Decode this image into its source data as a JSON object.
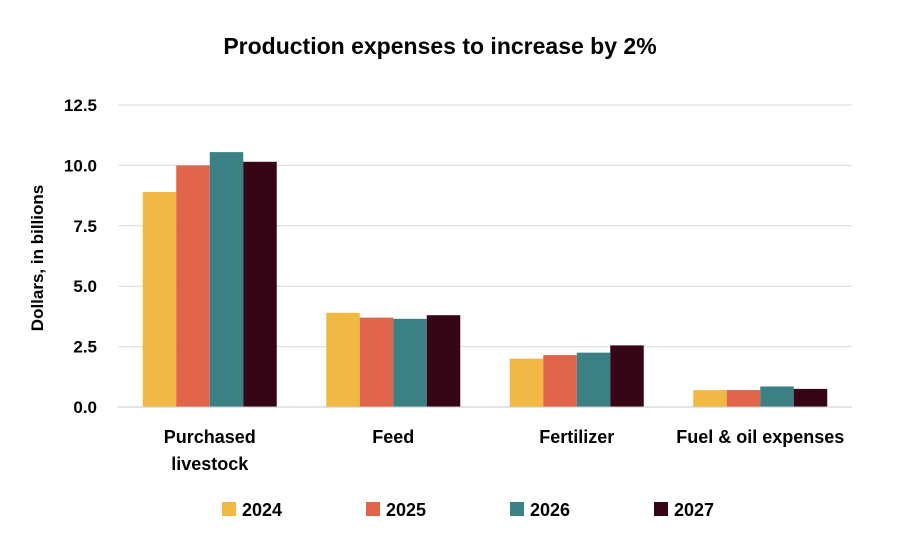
{
  "chart_data": {
    "type": "bar",
    "title": "Production expenses to increase by 2%",
    "ylabel": "Dollars, in billions",
    "xlabel": "",
    "ylim": [
      0,
      12.5
    ],
    "yticks": [
      "0.0",
      "2.5",
      "5.0",
      "7.5",
      "10.0",
      "12.5"
    ],
    "grid": true,
    "legend_position": "bottom",
    "categories": [
      [
        "Purchased",
        "livestock"
      ],
      [
        "Feed"
      ],
      [
        "Fertilizer"
      ],
      [
        "Fuel & oil expenses"
      ]
    ],
    "series": [
      {
        "name": "2024",
        "color": "#F2B844",
        "values": [
          8.9,
          3.9,
          2.0,
          0.7
        ]
      },
      {
        "name": "2025",
        "color": "#E0654A",
        "values": [
          10.0,
          3.7,
          2.15,
          0.7
        ]
      },
      {
        "name": "2026",
        "color": "#3A8085",
        "values": [
          10.55,
          3.65,
          2.25,
          0.85
        ]
      },
      {
        "name": "2027",
        "color": "#360617",
        "values": [
          10.15,
          3.8,
          2.55,
          0.75
        ]
      }
    ]
  }
}
